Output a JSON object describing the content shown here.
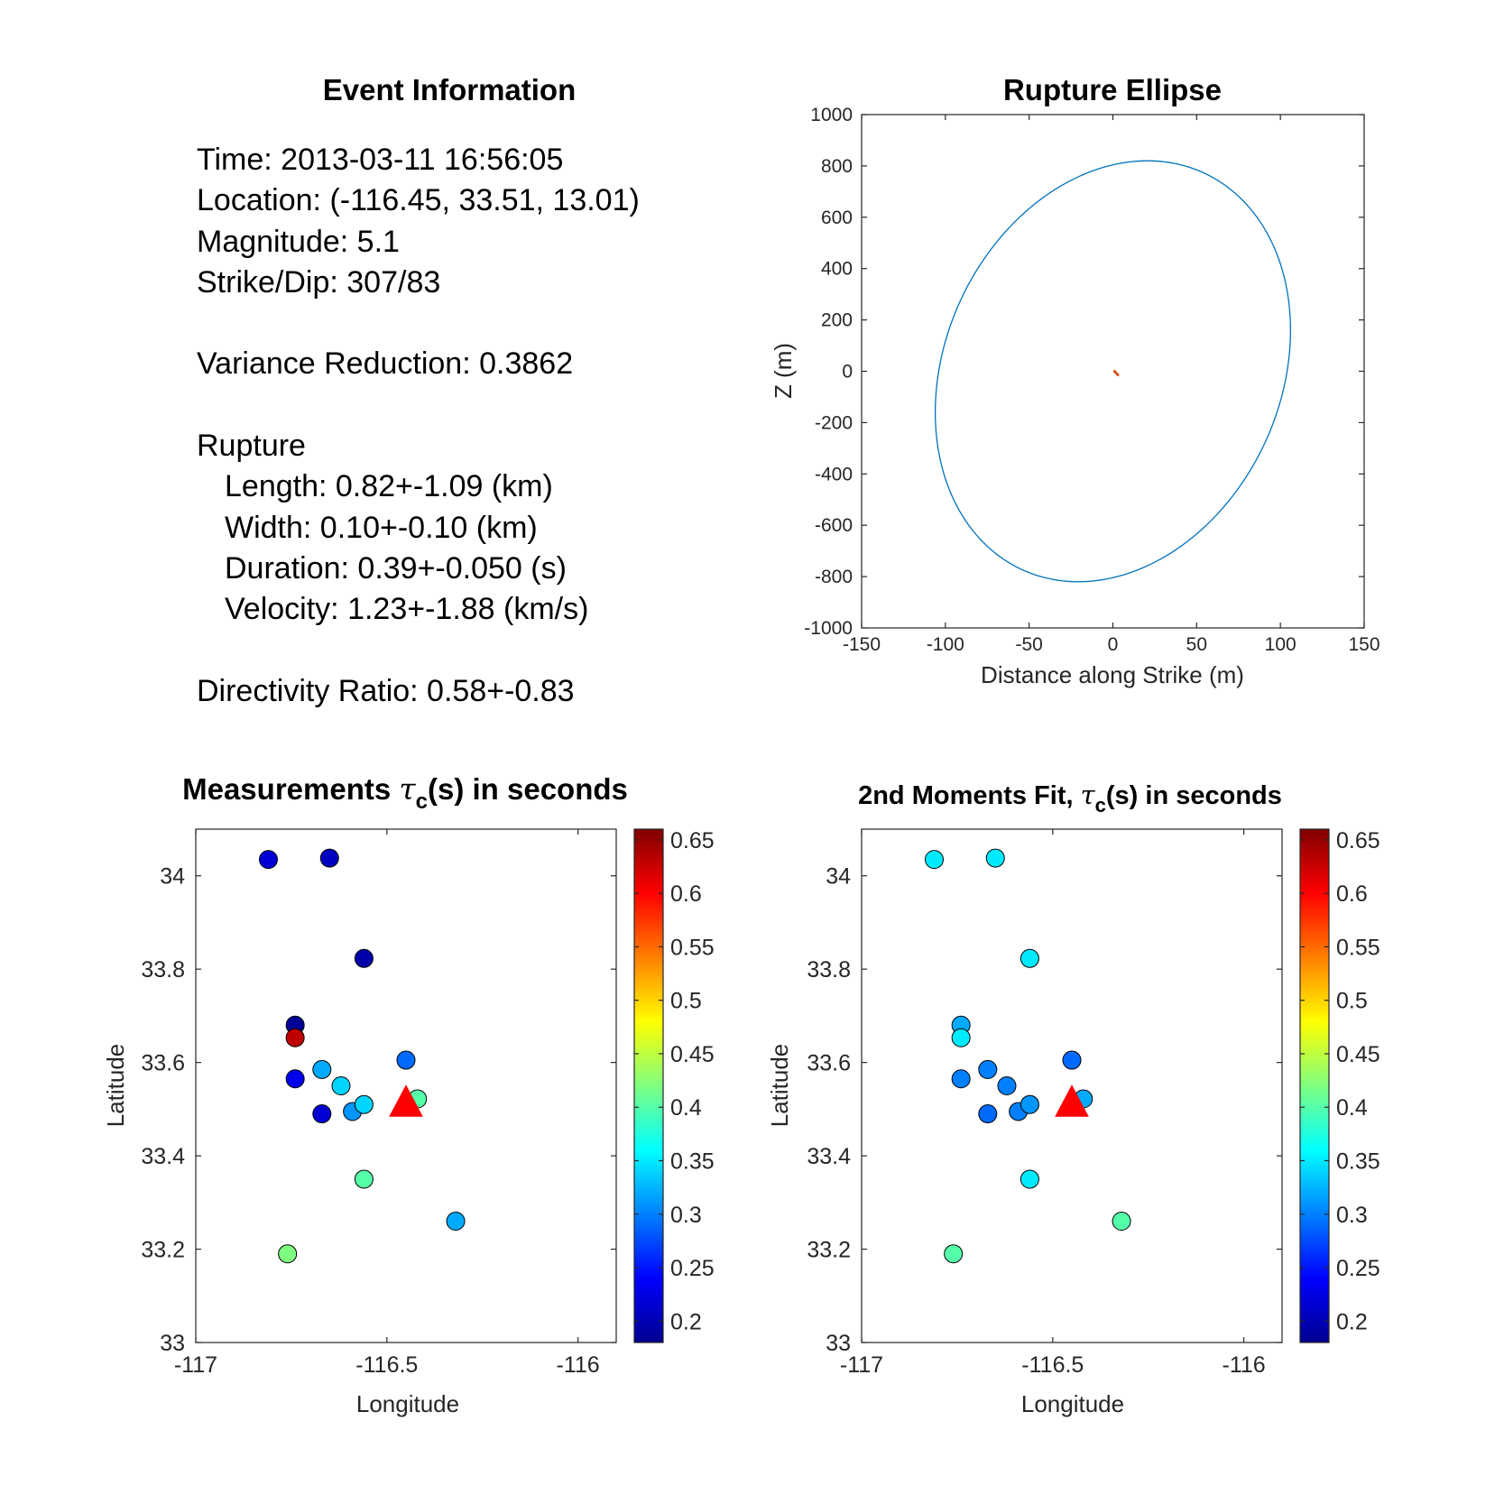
{
  "info_panel": {
    "title": "Event Information",
    "time": "Time: 2013-03-11 16:56:05",
    "location": "Location: (-116.45, 33.51, 13.01)",
    "magnitude": "Magnitude: 5.1",
    "strike_dip": "Strike/Dip: 307/83",
    "variance": "Variance Reduction: 0.3862",
    "rupture_header": "Rupture",
    "length": "Length: 0.82+-1.09 (km)",
    "width": "Width: 0.10+-0.10 (km)",
    "duration": "Duration: 0.39+-0.050 (s)",
    "velocity": "Velocity: 1.23+-1.88 (km/s)",
    "directivity": "Directivity Ratio: 0.58+-0.83"
  },
  "colors": {
    "ellipse": "#0072BD",
    "ellipse_center": "#D95319",
    "epicenter": "#FF0000",
    "axes": "#262626"
  },
  "chart_data": [
    {
      "type": "line",
      "title": "Rupture Ellipse",
      "xlabel": "Distance along Strike (m)",
      "ylabel": "Z (m)",
      "xlim": [
        -150,
        150
      ],
      "ylim": [
        -1000,
        1000
      ],
      "xticks": [
        "-150",
        "-100",
        "-50",
        "0",
        "50",
        "100",
        "150"
      ],
      "yticks": [
        "-1000",
        "-800",
        "-600",
        "-400",
        "-200",
        "0",
        "200",
        "400",
        "600",
        "800",
        "1000"
      ],
      "grid": false,
      "ellipse": {
        "center": [
          0,
          0
        ],
        "semi_x": 104,
        "semi_y": 820,
        "tilt_deg": -1.2
      },
      "center_mark": {
        "x": [
          1,
          2,
          3
        ],
        "y": [
          0,
          -8,
          -14
        ]
      }
    },
    {
      "type": "scatter",
      "title_prefix": "Measurements ",
      "tau": "τ",
      "sub": "c",
      "title_suffix": "(s) in seconds",
      "xlabel": "Longitude",
      "ylabel": "Latitude",
      "xlim": [
        -117,
        -115.9
      ],
      "ylim": [
        33,
        34.1
      ],
      "xticks": [
        "-117",
        "-116.5",
        "-116"
      ],
      "yticks": [
        "33",
        "33.2",
        "33.4",
        "33.6",
        "33.8",
        "34"
      ],
      "colorbar": {
        "min": 0.18,
        "max": 0.66,
        "ticks": [
          "0.2",
          "0.25",
          "0.3",
          "0.35",
          "0.4",
          "0.45",
          "0.5",
          "0.55",
          "0.6",
          "0.65"
        ]
      },
      "epicenter": {
        "lon": -116.45,
        "lat": 33.51
      },
      "points": [
        {
          "lon": -116.81,
          "lat": 34.035,
          "value": 0.22
        },
        {
          "lon": -116.65,
          "lat": 34.038,
          "value": 0.21
        },
        {
          "lon": -116.56,
          "lat": 33.823,
          "value": 0.2
        },
        {
          "lon": -116.74,
          "lat": 33.68,
          "value": 0.19
        },
        {
          "lon": -116.74,
          "lat": 33.653,
          "value": 0.63
        },
        {
          "lon": -116.74,
          "lat": 33.565,
          "value": 0.23
        },
        {
          "lon": -116.67,
          "lat": 33.585,
          "value": 0.32
        },
        {
          "lon": -116.62,
          "lat": 33.55,
          "value": 0.34
        },
        {
          "lon": -116.67,
          "lat": 33.49,
          "value": 0.22
        },
        {
          "lon": -116.59,
          "lat": 33.495,
          "value": 0.31
        },
        {
          "lon": -116.56,
          "lat": 33.51,
          "value": 0.34
        },
        {
          "lon": -116.45,
          "lat": 33.605,
          "value": 0.29
        },
        {
          "lon": -116.42,
          "lat": 33.522,
          "value": 0.4
        },
        {
          "lon": -116.56,
          "lat": 33.35,
          "value": 0.4
        },
        {
          "lon": -116.32,
          "lat": 33.26,
          "value": 0.32
        },
        {
          "lon": -116.76,
          "lat": 33.19,
          "value": 0.42
        }
      ]
    },
    {
      "type": "scatter",
      "title_prefix": "2nd Moments Fit, ",
      "tau": "τ",
      "sub": "c",
      "title_suffix": "(s) in seconds",
      "xlabel": "Longitude",
      "ylabel": "Latitude",
      "xlim": [
        -117,
        -115.9
      ],
      "ylim": [
        33,
        34.1
      ],
      "xticks": [
        "-117",
        "-116.5",
        "-116"
      ],
      "yticks": [
        "33",
        "33.2",
        "33.4",
        "33.6",
        "33.8",
        "34"
      ],
      "colorbar": {
        "min": 0.18,
        "max": 0.66,
        "ticks": [
          "0.2",
          "0.25",
          "0.3",
          "0.35",
          "0.4",
          "0.45",
          "0.5",
          "0.55",
          "0.6",
          "0.65"
        ]
      },
      "epicenter": {
        "lon": -116.45,
        "lat": 33.51
      },
      "points": [
        {
          "lon": -116.81,
          "lat": 34.035,
          "value": 0.35
        },
        {
          "lon": -116.65,
          "lat": 34.038,
          "value": 0.35
        },
        {
          "lon": -116.56,
          "lat": 33.823,
          "value": 0.35
        },
        {
          "lon": -116.74,
          "lat": 33.68,
          "value": 0.32
        },
        {
          "lon": -116.74,
          "lat": 33.653,
          "value": 0.35
        },
        {
          "lon": -116.74,
          "lat": 33.565,
          "value": 0.3
        },
        {
          "lon": -116.67,
          "lat": 33.585,
          "value": 0.3
        },
        {
          "lon": -116.62,
          "lat": 33.55,
          "value": 0.3
        },
        {
          "lon": -116.67,
          "lat": 33.49,
          "value": 0.29
        },
        {
          "lon": -116.59,
          "lat": 33.495,
          "value": 0.3
        },
        {
          "lon": -116.56,
          "lat": 33.51,
          "value": 0.31
        },
        {
          "lon": -116.45,
          "lat": 33.605,
          "value": 0.29
        },
        {
          "lon": -116.42,
          "lat": 33.522,
          "value": 0.32
        },
        {
          "lon": -116.56,
          "lat": 33.35,
          "value": 0.35
        },
        {
          "lon": -116.32,
          "lat": 33.26,
          "value": 0.4
        },
        {
          "lon": -116.76,
          "lat": 33.19,
          "value": 0.4
        }
      ]
    }
  ]
}
